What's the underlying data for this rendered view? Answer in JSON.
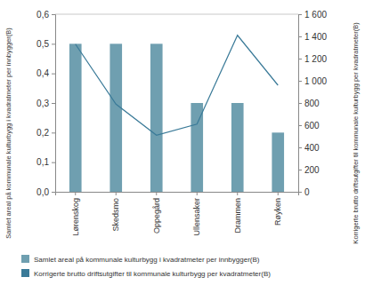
{
  "chart_data": {
    "type": "bar",
    "categories": [
      "Lørenskog",
      "Skedsmo",
      "Oppegård",
      "Ullensaker",
      "Drammen",
      "Røyken"
    ],
    "series": [
      {
        "name": "Samlet areal på kommunale kulturbygg i kvadratmeter per innbygger(B)",
        "type": "bar",
        "color": "#6f9fb0",
        "values": [
          0.5,
          0.5,
          0.5,
          0.3,
          0.3,
          0.2
        ]
      },
      {
        "name": "Korrigerte brutto driftsutgifter til kommunale kulturbygg per kvadratmeter(B)",
        "type": "line",
        "axis": "y2",
        "color": "#3a7a98",
        "values": [
          1330,
          790,
          510,
          610,
          1410,
          960
        ]
      }
    ],
    "ylabel": "Samlet areal på kommunale kulturbygg i kvadratmeter per innbygger(B)",
    "y2label": "Korrigerte brutto driftsutgifter til kommunale kulturbygg per kvadratmeter(B)",
    "ylim": [
      0,
      0.6
    ],
    "yticks": [
      {
        "value": 0,
        "label": "0,0"
      },
      {
        "value": 0.1,
        "label": "0,1"
      },
      {
        "value": 0.2,
        "label": "0,2"
      },
      {
        "value": 0.3,
        "label": "0,3"
      },
      {
        "value": 0.4,
        "label": "0,4"
      },
      {
        "value": 0.5,
        "label": "0,5"
      },
      {
        "value": 0.6,
        "label": "0,6"
      }
    ],
    "y2lim": [
      0,
      1600
    ],
    "y2ticks": [
      0,
      200,
      400,
      600,
      800,
      {
        "value": 1000,
        "label": "1 000"
      },
      {
        "value": 1200,
        "label": "1 200"
      },
      {
        "value": 1400,
        "label": "1 400"
      },
      {
        "value": 1600,
        "label": "1 600"
      }
    ],
    "grid": false,
    "legend": "bottom"
  }
}
